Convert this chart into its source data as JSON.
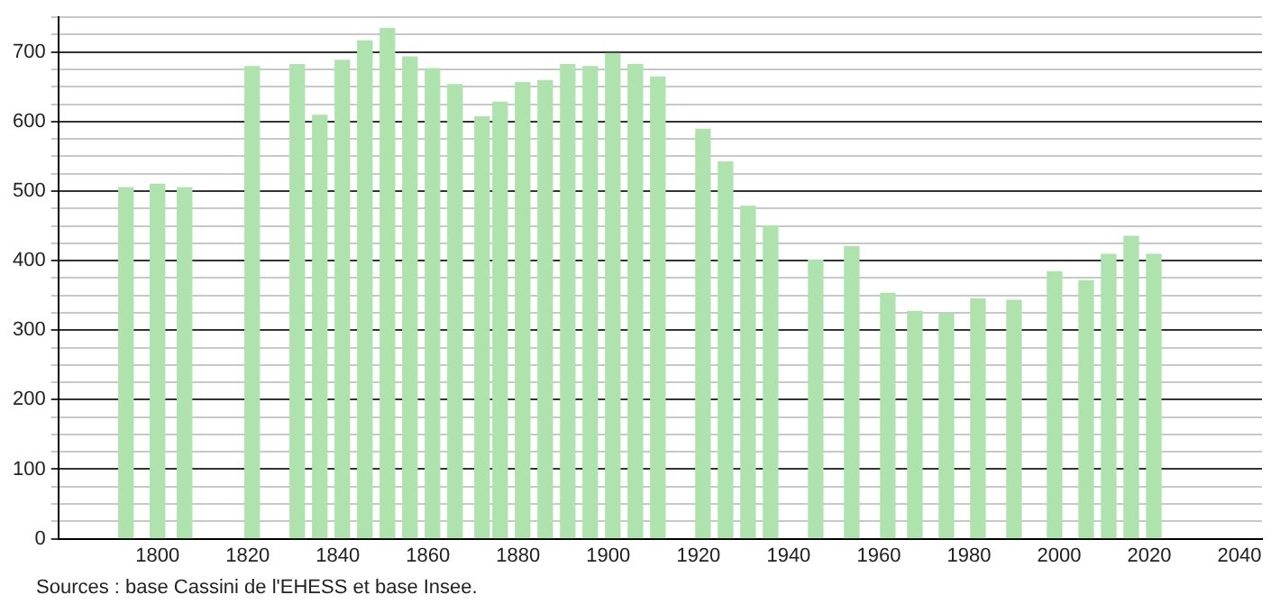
{
  "chart_data": {
    "type": "bar",
    "x": [
      1793,
      1800,
      1806,
      1821,
      1831,
      1836,
      1841,
      1846,
      1851,
      1856,
      1861,
      1866,
      1872,
      1876,
      1881,
      1886,
      1891,
      1896,
      1901,
      1906,
      1911,
      1921,
      1926,
      1931,
      1936,
      1946,
      1954,
      1962,
      1968,
      1975,
      1982,
      1990,
      1999,
      2006,
      2011,
      2016,
      2021
    ],
    "values": [
      505,
      510,
      505,
      679,
      682,
      609,
      688,
      716,
      734,
      693,
      676,
      653,
      607,
      628,
      656,
      659,
      682,
      679,
      698,
      682,
      664,
      589,
      542,
      478,
      450,
      401,
      420,
      353,
      327,
      323,
      345,
      343,
      384,
      371,
      409,
      435,
      409
    ],
    "color": "#aee3ae",
    "xlim": [
      1778,
      2045
    ],
    "xticks": [
      1800,
      1820,
      1840,
      1860,
      1880,
      1900,
      1920,
      1940,
      1960,
      1980,
      2000,
      2020,
      2040
    ],
    "ylim": [
      0,
      750
    ],
    "yticks": [
      0,
      {
        "value": 25,
        "label": null
      },
      {
        "value": 50,
        "label": null
      },
      {
        "value": 75,
        "label": null
      },
      100,
      {
        "value": 125,
        "label": null
      },
      {
        "value": 150,
        "label": null
      },
      {
        "value": 175,
        "label": null
      },
      200,
      {
        "value": 225,
        "label": null
      },
      {
        "value": 250,
        "label": null
      },
      {
        "value": 275,
        "label": null
      },
      300,
      {
        "value": 325,
        "label": null
      },
      {
        "value": 350,
        "label": null
      },
      {
        "value": 375,
        "label": null
      },
      400,
      {
        "value": 425,
        "label": null
      },
      {
        "value": 450,
        "label": null
      },
      {
        "value": 475,
        "label": null
      },
      500,
      {
        "value": 525,
        "label": null
      },
      {
        "value": 550,
        "label": null
      },
      {
        "value": 575,
        "label": null
      },
      600,
      {
        "value": 625,
        "label": null
      },
      {
        "value": 650,
        "label": null
      },
      {
        "value": 675,
        "label": null
      },
      700,
      {
        "value": 725,
        "label": null
      },
      {
        "value": 750,
        "label": null
      }
    ],
    "grid": "y",
    "legend": false,
    "annotations": [
      "Sources : base Cassini de l'EHESS et base Insee."
    ]
  }
}
